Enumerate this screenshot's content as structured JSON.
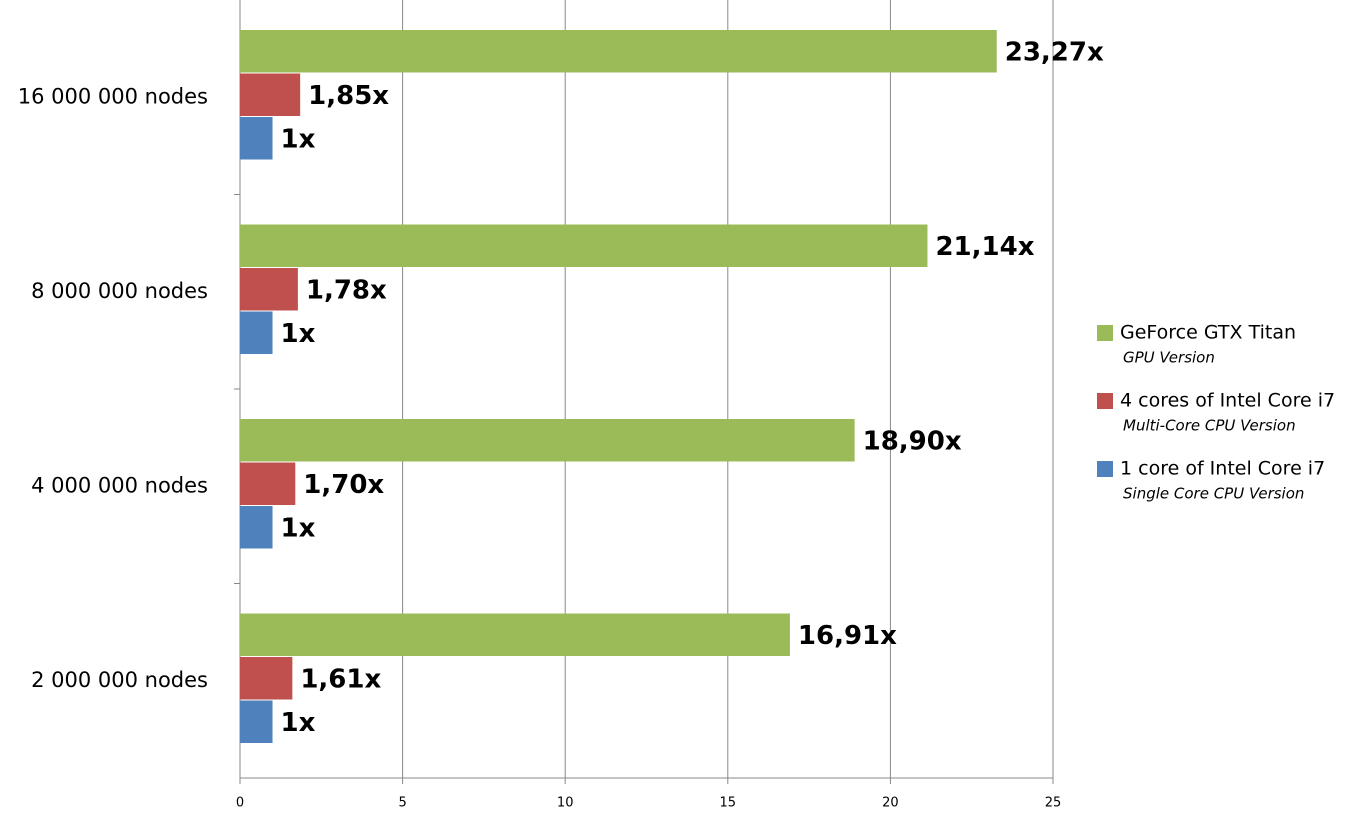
{
  "chart_data": {
    "type": "hbar",
    "categories": [
      "16 000 000 nodes",
      "8 000 000 nodes",
      "4 000 000 nodes",
      "2 000 000 nodes"
    ],
    "series": [
      {
        "name": "GeForce GTX Titan",
        "subtitle": "GPU Version",
        "color": "#9bbb59",
        "values": [
          23.27,
          21.14,
          18.9,
          16.91
        ],
        "value_labels": [
          "23,27x",
          "21,14x",
          "18,90x",
          "16,91x"
        ]
      },
      {
        "name": "4 cores of Intel Core i7",
        "subtitle": "Multi-Core CPU Version",
        "color": "#c0504d",
        "values": [
          1.85,
          1.78,
          1.7,
          1.61
        ],
        "value_labels": [
          "1,85x",
          "1,78x",
          "1,70x",
          "1,61x"
        ]
      },
      {
        "name": "1 core of Intel Core i7",
        "subtitle": "Single Core CPU Version",
        "color": "#4f81bd",
        "values": [
          1,
          1,
          1,
          1
        ],
        "value_labels": [
          "1x",
          "1x",
          "1x",
          "1x"
        ]
      }
    ],
    "xlim": [
      0,
      25
    ],
    "xticks": [
      0,
      5,
      10,
      15,
      20,
      25
    ],
    "grid": true,
    "legend": "right"
  }
}
